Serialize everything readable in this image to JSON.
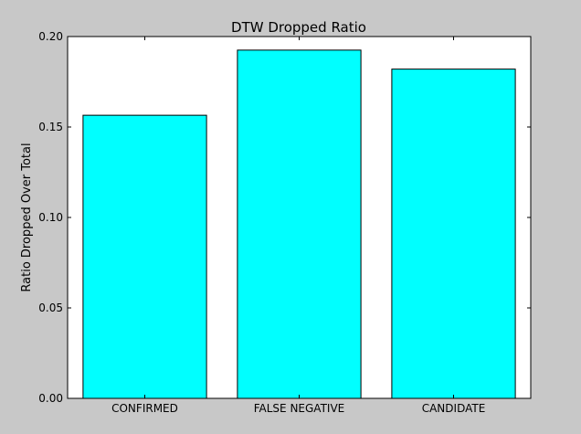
{
  "chart_data": {
    "type": "bar",
    "title": "DTW Dropped Ratio",
    "xlabel": "",
    "ylabel": "Ratio Dropped Over Total",
    "categories": [
      "CONFIRMED",
      "FALSE NEGATIVE",
      "CANDIDATE"
    ],
    "values": [
      0.1565,
      0.1925,
      0.182
    ],
    "ylim": [
      0.0,
      0.2
    ],
    "yticks": [
      "0.00",
      "0.05",
      "0.10",
      "0.15",
      "0.20"
    ],
    "grid": false,
    "bar_color": "#00ffff",
    "edge_color": "#000000",
    "background_color": "#c8c8c8",
    "plot_background_color": "#ffffff"
  }
}
